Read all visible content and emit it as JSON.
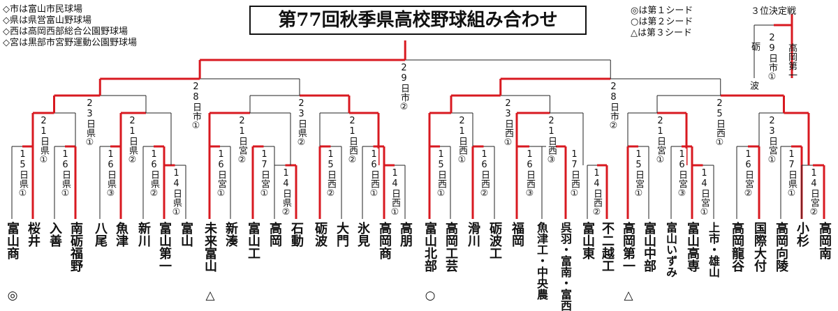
{
  "title": "第77回秋季県高校野球組み合わせ",
  "legend": [
    "◇市は富山市民球場",
    "◇県は県営富山野球場",
    "◇西は高岡西部総合公園野球場",
    "◇宮は黒部市宮野運動公園野球場"
  ],
  "seeds": [
    "◎は第１シード",
    "○は第２シード",
    "△は第３シード"
  ],
  "third_place": {
    "title": "３位決定戦",
    "label": "29日市①",
    "left_team": "砺波",
    "right_team": "高岡第一"
  },
  "teams": [
    {
      "name": "富山商",
      "mark": "◎"
    },
    {
      "name": "桜井",
      "mark": ""
    },
    {
      "name": "入善",
      "mark": ""
    },
    {
      "name": "南砺福野",
      "mark": ""
    },
    {
      "name": "八尾",
      "mark": ""
    },
    {
      "name": "魚津",
      "mark": ""
    },
    {
      "name": "新川",
      "mark": ""
    },
    {
      "name": "富山第一",
      "mark": ""
    },
    {
      "name": "富山",
      "mark": ""
    },
    {
      "name": "未来富山",
      "mark": "△"
    },
    {
      "name": "新湊",
      "mark": ""
    },
    {
      "name": "富山工",
      "mark": ""
    },
    {
      "name": "高岡",
      "mark": ""
    },
    {
      "name": "石動",
      "mark": ""
    },
    {
      "name": "砺波",
      "mark": ""
    },
    {
      "name": "大門",
      "mark": ""
    },
    {
      "name": "氷見",
      "mark": ""
    },
    {
      "name": "高岡商",
      "mark": ""
    },
    {
      "name": "高朋",
      "mark": ""
    },
    {
      "name": "富山北部",
      "mark": "○"
    },
    {
      "name": "高岡工芸",
      "mark": ""
    },
    {
      "name": "滑川",
      "mark": ""
    },
    {
      "name": "砺波工",
      "mark": ""
    },
    {
      "name": "福岡",
      "mark": ""
    },
    {
      "name": "魚津工・中央農",
      "mark": ""
    },
    {
      "name": "呉羽・富南・富西",
      "mark": ""
    },
    {
      "name": "富山東",
      "mark": ""
    },
    {
      "name": "不二越工",
      "mark": ""
    },
    {
      "name": "高岡第一",
      "mark": "△"
    },
    {
      "name": "富山中部",
      "mark": ""
    },
    {
      "name": "富山いずみ",
      "mark": ""
    },
    {
      "name": "富山高専",
      "mark": ""
    },
    {
      "name": "上市・雄山",
      "mark": ""
    },
    {
      "name": "高岡龍谷",
      "mark": ""
    },
    {
      "name": "国際大付",
      "mark": ""
    },
    {
      "name": "高岡向陵",
      "mark": ""
    },
    {
      "name": "小杉",
      "mark": ""
    },
    {
      "name": "高岡南",
      "mark": ""
    }
  ],
  "labels": {
    "r1": [
      "15日県①",
      "16日県①",
      "16日県③",
      "16日県②",
      "14日県①",
      "16日宮①",
      "17日宮①",
      "14日県②",
      "15日西②",
      "16日西①",
      "14日西①",
      "15日西①",
      "16日西②",
      "16日西③",
      "17日西①",
      "14日西②",
      "15日宮①",
      "16日宮③",
      "14日宮①",
      "16日宮②",
      "17日県①",
      "14日宮②"
    ],
    "r2": [
      "21日県①",
      "21日県②",
      "21日宮②",
      "21日西②",
      "21日西①",
      "21日西③",
      "21日宮①",
      "23日宮①"
    ],
    "r3": [
      "23日県①",
      "23日県②",
      "23日西①",
      "25日西①"
    ],
    "qf": [
      "28日市①",
      "28日市②"
    ],
    "final": "29日市②",
    "third_left": "砺",
    "third_right": "波"
  },
  "colors": {
    "winner": "#d81920",
    "line": "#222222"
  }
}
